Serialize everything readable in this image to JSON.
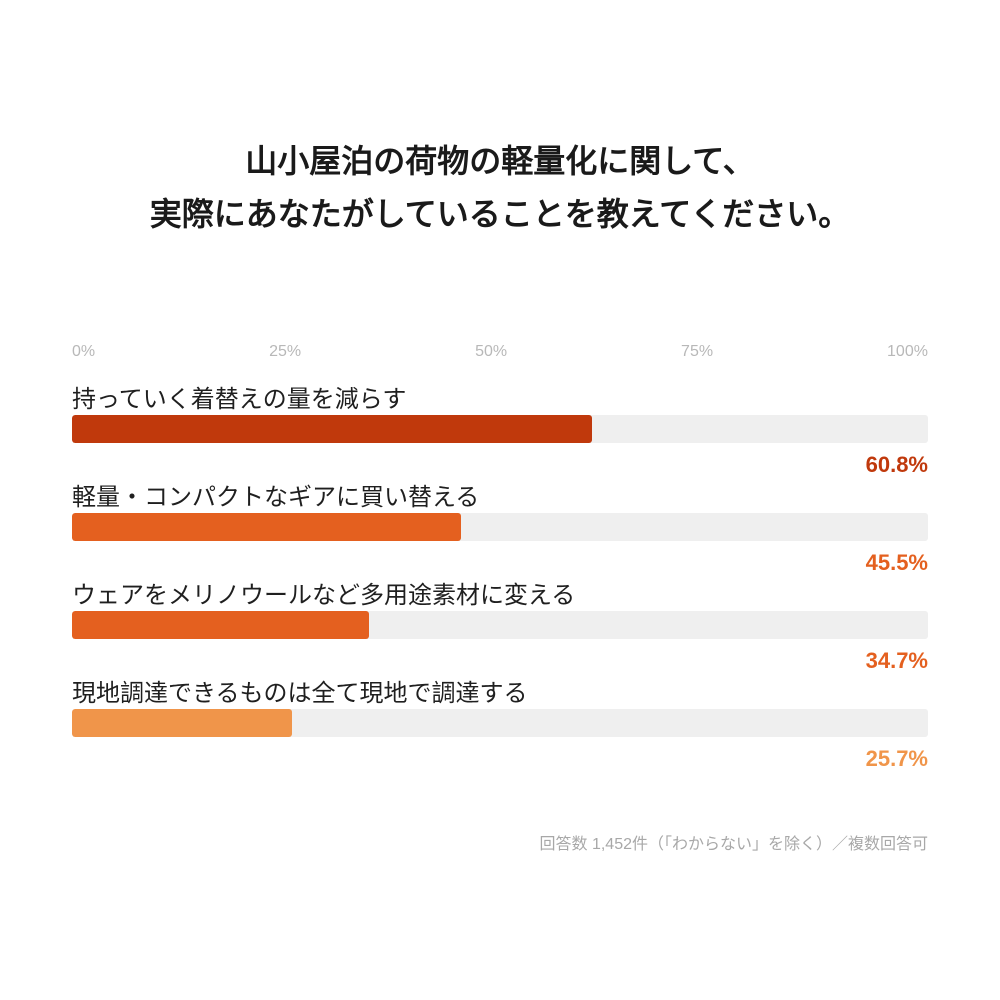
{
  "chart_data": {
    "type": "bar",
    "orientation": "horizontal",
    "title_lines": [
      "山小屋泊の荷物の軽量化に関して、",
      "実際にあなたがしていることを教えてください。"
    ],
    "categories": [
      "持っていく着替えの量を減らす",
      "軽量・コンパクトなギアに買い替える",
      "ウェアをメリノウールなど多用途素材に変える",
      "現地調達できるものは全て現地で調達する"
    ],
    "values": [
      60.8,
      45.5,
      34.7,
      25.7
    ],
    "data_labels": [
      "60.8%",
      "45.5%",
      "34.7%",
      "25.7%"
    ],
    "x_ticks": [
      "0%",
      "25%",
      "50%",
      "75%",
      "100%"
    ],
    "xlim": [
      0,
      100
    ],
    "grid": false,
    "bar_colors": [
      "#C0390C",
      "#E4601F",
      "#E4601F",
      "#F0954A"
    ],
    "track_color": "#EFEFEF",
    "note": "回答数 1,452件（「わからない」を除く）／複数回答可"
  }
}
